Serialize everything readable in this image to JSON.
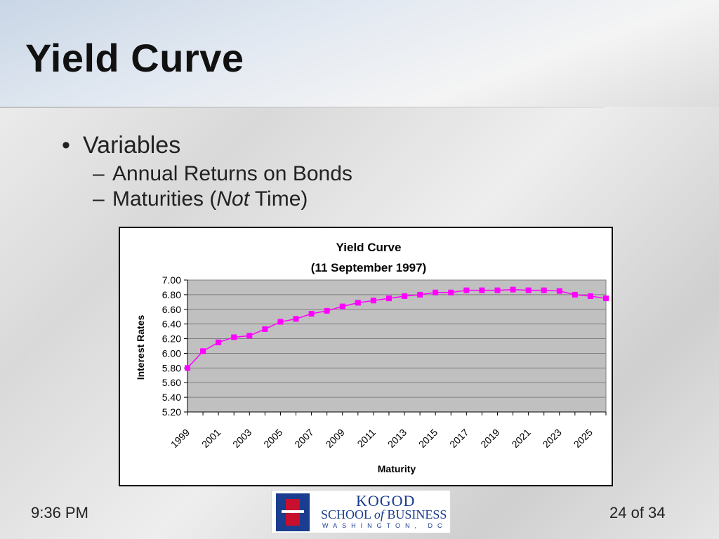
{
  "slide": {
    "title": "Yield Curve",
    "bullets": {
      "main": "Variables",
      "sub1": "Annual Returns on Bonds",
      "sub2_pre": "Maturities (",
      "sub2_em": "Not",
      "sub2_post": " Time)"
    },
    "footer_time": "9:36 PM",
    "footer_page": "24 of 34",
    "logo": {
      "line1": "KOGOD",
      "line2a": "SCHOOL ",
      "line2b": "of",
      "line2c": " BUSINESS",
      "line3": "WASHINGTON, DC"
    }
  },
  "chart_data": {
    "type": "line",
    "title": "Yield Curve",
    "subtitle": "(11 September 1997)",
    "xlabel": "Maturity",
    "ylabel": "Interest Rates",
    "ylim": [
      5.2,
      7.0
    ],
    "yticks": [
      "7.00",
      "6.80",
      "6.60",
      "6.40",
      "6.20",
      "6.00",
      "5.80",
      "5.60",
      "5.40",
      "5.20"
    ],
    "x_tick_labels": [
      "1999",
      "2001",
      "2003",
      "2005",
      "2007",
      "2009",
      "2011",
      "2013",
      "2015",
      "2017",
      "2019",
      "2021",
      "2023",
      "2025"
    ],
    "x": [
      1999,
      2000,
      2001,
      2002,
      2003,
      2004,
      2005,
      2006,
      2007,
      2008,
      2009,
      2010,
      2011,
      2012,
      2013,
      2014,
      2015,
      2016,
      2017,
      2018,
      2019,
      2020,
      2021,
      2022,
      2023,
      2024,
      2025,
      2026
    ],
    "values": [
      5.8,
      6.03,
      6.15,
      6.22,
      6.24,
      6.33,
      6.43,
      6.47,
      6.54,
      6.58,
      6.64,
      6.69,
      6.72,
      6.75,
      6.78,
      6.8,
      6.83,
      6.83,
      6.86,
      6.86,
      6.86,
      6.87,
      6.86,
      6.86,
      6.85,
      6.8,
      6.78,
      6.75
    ],
    "grid": true,
    "colors": {
      "line": "#ff00ff",
      "marker": "#ff00ff",
      "plot_bg": "#c0c0c0",
      "grid": "#808080"
    }
  }
}
